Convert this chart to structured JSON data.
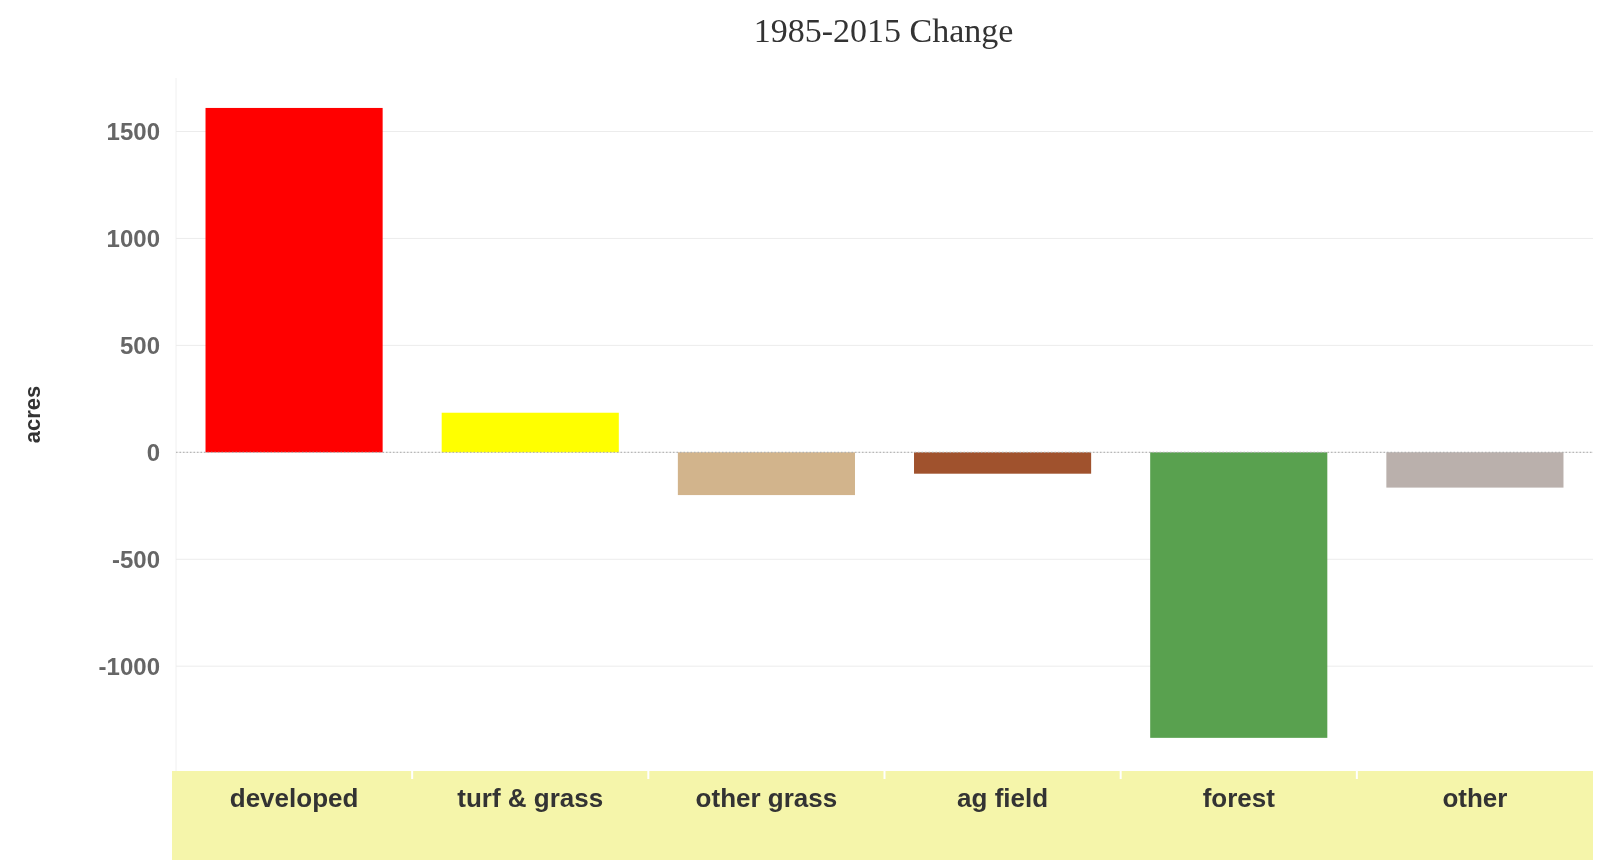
{
  "chart_data": {
    "type": "bar",
    "title": "1985-2015 Change",
    "ylabel": "acres",
    "categories": [
      "developed",
      "turf & grass",
      "other grass",
      "ag field",
      "forest",
      "other"
    ],
    "values": [
      1610,
      185,
      -200,
      -100,
      -1335,
      -165
    ],
    "colors": [
      "#ff0000",
      "#ffff00",
      "#d2b48c",
      "#a0522d",
      "#59a14f",
      "#bab0ac"
    ],
    "ylim": [
      -1490,
      1750
    ],
    "yticks": [
      -1000,
      -500,
      0,
      500,
      1000,
      1500
    ],
    "grid": "y",
    "ref_lines": [
      {
        "axis": "y",
        "value": 0,
        "color": "#aaaaaa",
        "line_style": "dotted"
      }
    ]
  }
}
